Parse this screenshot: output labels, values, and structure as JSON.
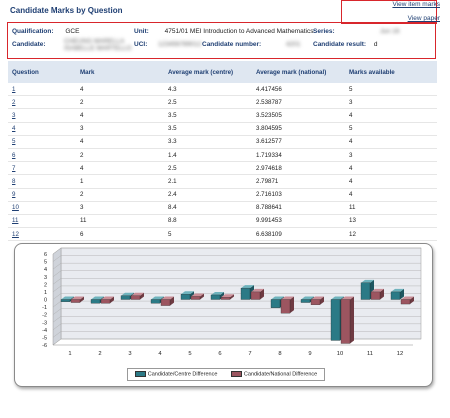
{
  "page_title": "Candidate Marks by Question",
  "links": {
    "view_item_marks": "View item marks",
    "view_paper": "View paper"
  },
  "info": {
    "qualification_label": "Qualification:",
    "qualification_value": "GCE",
    "unit_label": "Unit:",
    "unit_value": "4751/01 MEI Introduction to Advanced Mathematics",
    "series_label": "Series:",
    "series_value": "Jun 16",
    "candidate_label": "Candidate:",
    "candidate_value_1": "CHEUNG MARELLA",
    "candidate_value_2": "ISABELLE MARTELLO",
    "uci_label": "UCI:",
    "uci_value": "123456789012",
    "candidate_number_label": "Candidate number:",
    "candidate_number_value": "4201",
    "candidate_result_label": "Candidate result:",
    "candidate_result_value": "d"
  },
  "table": {
    "headers": [
      "Question",
      "Mark",
      "Average mark (centre)",
      "Average mark (national)",
      "Marks available"
    ],
    "rows": [
      [
        "1",
        "4",
        "4.3",
        "4.417456",
        "5"
      ],
      [
        "2",
        "2",
        "2.5",
        "2.538787",
        "3"
      ],
      [
        "3",
        "4",
        "3.5",
        "3.523505",
        "4"
      ],
      [
        "4",
        "3",
        "3.5",
        "3.804595",
        "5"
      ],
      [
        "5",
        "4",
        "3.3",
        "3.612577",
        "4"
      ],
      [
        "6",
        "2",
        "1.4",
        "1.719334",
        "3"
      ],
      [
        "7",
        "4",
        "2.5",
        "2.974618",
        "4"
      ],
      [
        "8",
        "1",
        "2.1",
        "2.79871",
        "4"
      ],
      [
        "9",
        "2",
        "2.4",
        "2.716103",
        "4"
      ],
      [
        "10",
        "3",
        "8.4",
        "8.788641",
        "11"
      ],
      [
        "11",
        "11",
        "8.8",
        "9.991453",
        "13"
      ],
      [
        "12",
        "6",
        "5",
        "6.638109",
        "12"
      ]
    ]
  },
  "colors": {
    "centre": "#2b7a86",
    "national": "#9c5560",
    "title": "#1f3f73",
    "red_box": "#d8262c"
  },
  "chart_data": {
    "type": "bar",
    "categories": [
      "1",
      "2",
      "3",
      "4",
      "5",
      "6",
      "7",
      "8",
      "9",
      "10",
      "11",
      "12"
    ],
    "series": [
      {
        "name": "Candidate/Centre Difference",
        "values": [
          -0.3,
          -0.5,
          0.5,
          -0.5,
          0.7,
          0.6,
          1.5,
          -1.1,
          -0.4,
          -5.4,
          2.2,
          1.0
        ]
      },
      {
        "name": "Candidate/National Difference",
        "values": [
          -0.4,
          -0.5,
          0.5,
          -0.8,
          0.4,
          0.3,
          1.0,
          -1.8,
          -0.7,
          -5.8,
          1.0,
          -0.6
        ]
      }
    ],
    "ylim": [
      -6,
      6
    ],
    "yticks": [
      "6",
      "5",
      "4",
      "3",
      "2",
      "1",
      "0",
      "-1",
      "-2",
      "-3",
      "-4",
      "-5",
      "-6"
    ],
    "grid": true,
    "legend": "bottom"
  }
}
